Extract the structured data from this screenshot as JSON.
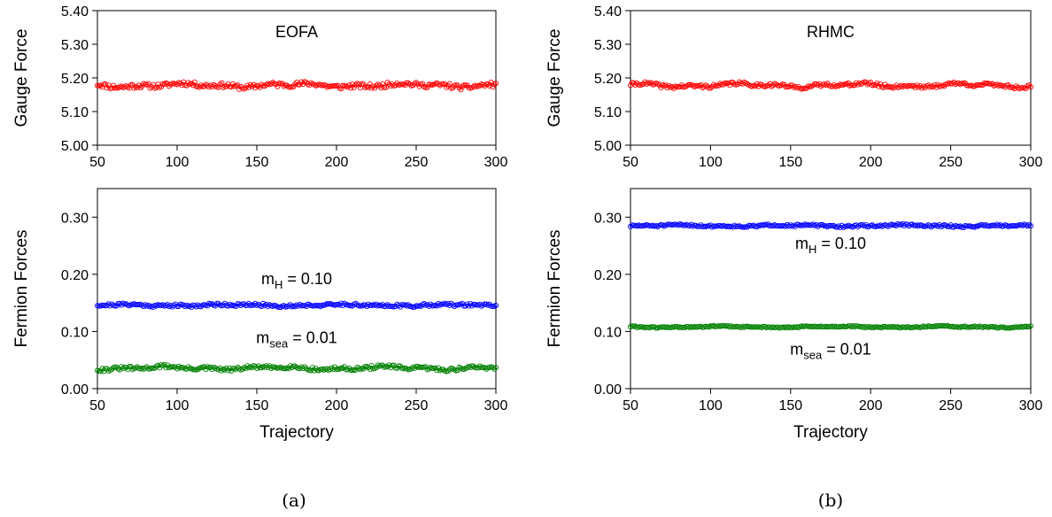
{
  "panels": [
    {
      "caption": "(a)",
      "charts": [
        {
          "type": "scatter",
          "title": "EOFA",
          "ylabel": "Gauge Force",
          "xlabel": "",
          "xlim": [
            50,
            300
          ],
          "ylim": [
            5.0,
            5.4
          ],
          "xticks": [
            "50",
            "100",
            "150",
            "200",
            "250",
            "300"
          ],
          "yticks": [
            "5.00",
            "5.10",
            "5.20",
            "5.30",
            "5.40"
          ],
          "annotations": [],
          "series": [
            {
              "color": "#ff0000",
              "baseline": 5.178,
              "jitter": 0.007,
              "drift": 0.004,
              "seed": 11,
              "x": [
                50,
                300
              ],
              "y": [
                5.18,
                5.18
              ]
            }
          ]
        },
        {
          "type": "scatter",
          "title": "",
          "ylabel": "Fermion Forces",
          "xlabel": "Trajectory",
          "xlim": [
            50,
            300
          ],
          "ylim": [
            0.0,
            0.35
          ],
          "xticks": [
            "50",
            "100",
            "150",
            "200",
            "250",
            "300"
          ],
          "yticks": [
            "0.00",
            "0.10",
            "0.20",
            "0.30"
          ],
          "annotations": [
            {
              "base": "m",
              "sub": "H",
              "rest": " = 0.10",
              "x": 175,
              "y": 0.183
            },
            {
              "base": "m",
              "sub": "sea",
              "rest": " = 0.01",
              "x": 175,
              "y": 0.08
            }
          ],
          "series": [
            {
              "color": "#0000ff",
              "baseline": 0.146,
              "jitter": 0.0025,
              "drift": 0.001,
              "seed": 21,
              "x": [
                50,
                300
              ],
              "y": [
                0.146,
                0.146
              ]
            },
            {
              "color": "#008000",
              "baseline": 0.036,
              "jitter": 0.003,
              "drift": 0.002,
              "seed": 31,
              "x": [
                50,
                300
              ],
              "y": [
                0.036,
                0.038
              ]
            }
          ]
        }
      ]
    },
    {
      "caption": "(b)",
      "charts": [
        {
          "type": "scatter",
          "title": "RHMC",
          "ylabel": "Gauge Force",
          "xlabel": "",
          "xlim": [
            50,
            300
          ],
          "ylim": [
            5.0,
            5.4
          ],
          "xticks": [
            "50",
            "100",
            "150",
            "200",
            "250",
            "300"
          ],
          "yticks": [
            "5.00",
            "5.10",
            "5.20",
            "5.30",
            "5.40"
          ],
          "annotations": [],
          "series": [
            {
              "color": "#ff0000",
              "baseline": 5.178,
              "jitter": 0.005,
              "drift": 0.004,
              "seed": 41,
              "x": [
                50,
                300
              ],
              "y": [
                5.175,
                5.175
              ]
            }
          ]
        },
        {
          "type": "scatter",
          "title": "",
          "ylabel": "Fermion Forces",
          "xlabel": "Trajectory",
          "xlim": [
            50,
            300
          ],
          "ylim": [
            0.0,
            0.35
          ],
          "xticks": [
            "50",
            "100",
            "150",
            "200",
            "250",
            "300"
          ],
          "yticks": [
            "0.00",
            "0.10",
            "0.20",
            "0.30"
          ],
          "annotations": [
            {
              "base": "m",
              "sub": "H",
              "rest": " = 0.10",
              "x": 175,
              "y": 0.245
            },
            {
              "base": "m",
              "sub": "sea",
              "rest": " = 0.01",
              "x": 175,
              "y": 0.06
            }
          ],
          "series": [
            {
              "color": "#0000ff",
              "baseline": 0.285,
              "jitter": 0.0018,
              "drift": 0.001,
              "seed": 51,
              "x": [
                50,
                300
              ],
              "y": [
                0.286,
                0.285
              ]
            },
            {
              "color": "#008000",
              "baseline": 0.108,
              "jitter": 0.0012,
              "drift": 0.0008,
              "seed": 61,
              "x": [
                50,
                300
              ],
              "y": [
                0.108,
                0.108
              ]
            }
          ]
        }
      ]
    }
  ]
}
